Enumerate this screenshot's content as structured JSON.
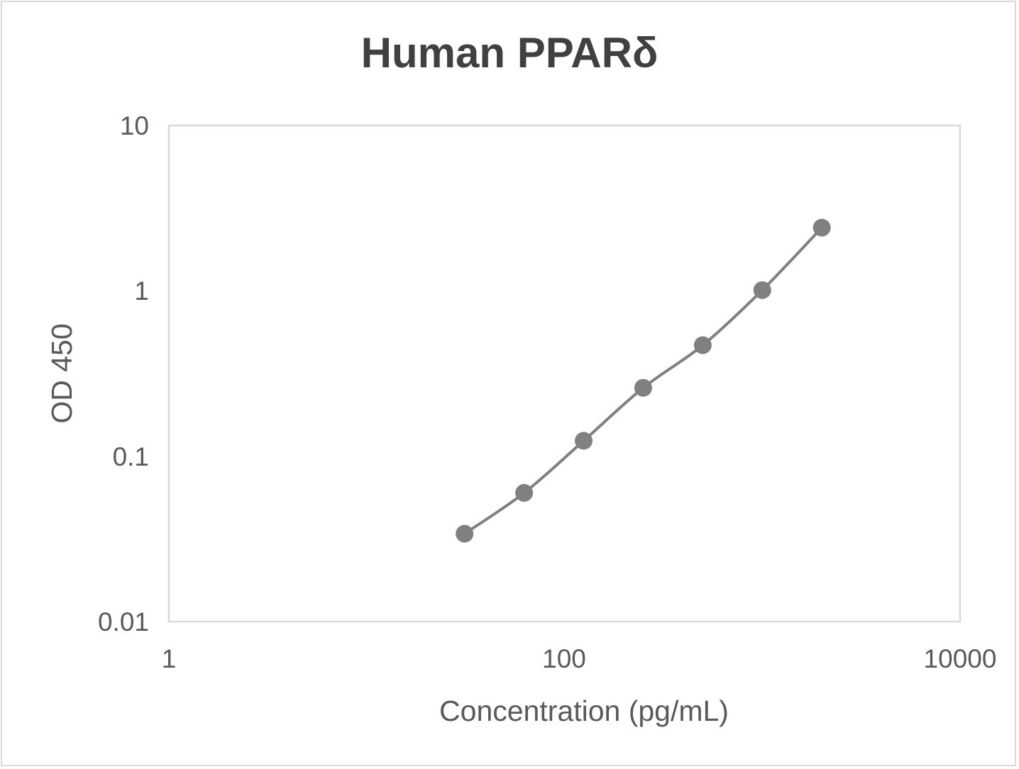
{
  "chart_data": {
    "type": "line",
    "title": "Human PPARδ",
    "xlabel": "Concentration (pg/mL)",
    "ylabel": "OD 450",
    "x_scale": "log",
    "y_scale": "log",
    "xlim": [
      1,
      10000
    ],
    "ylim": [
      0.01,
      10
    ],
    "x_ticks": [
      "1",
      "100",
      "10000"
    ],
    "y_ticks": [
      "10",
      "1",
      "0.1",
      "0.01"
    ],
    "grid": false,
    "legend": null,
    "series": [
      {
        "name": "Human PPARδ",
        "marker": "circle",
        "line": "smooth",
        "color": "#808080",
        "x": [
          31.25,
          62.5,
          125,
          250,
          500,
          1000,
          2000
        ],
        "values": [
          0.034,
          0.06,
          0.124,
          0.259,
          0.469,
          1.01,
          2.41
        ]
      }
    ]
  },
  "colors": {
    "series": "#808080",
    "plot_border": "#d9d9d9",
    "text": "#595959",
    "title": "#404040"
  }
}
